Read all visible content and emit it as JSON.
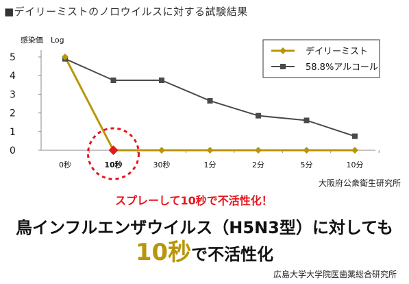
{
  "page": {
    "title": "■デイリーミストのノロウイルスに対する試験結果",
    "source_chart": "大阪府公衆衛生研究所",
    "callout": "スプレーして10秒で不活性化！",
    "headline_line1": "鳥インフルエンザウイルス（H5N3型）に対しても",
    "headline_line2_big": "10秒",
    "headline_line2_rest": "で不活性化",
    "source_bottom": "広島大学大学院医歯薬総合研究所"
  },
  "chart_data": {
    "type": "line",
    "ylabel": "感染価　Log",
    "ylim": [
      0,
      5
    ],
    "yticks": [
      "0",
      "1",
      "2",
      "3",
      "4",
      "5"
    ],
    "categories": [
      "0秒",
      "10秒",
      "30秒",
      "1分",
      "2分",
      "5分",
      "10分"
    ],
    "highlight_category": "10秒",
    "grid": false,
    "legend_position": "top-right",
    "series": [
      {
        "name": "デイリーミスト",
        "color": "#b8960b",
        "marker": "diamond",
        "values": [
          5.0,
          0.0,
          0.0,
          0.0,
          0.0,
          0.0,
          0.0
        ]
      },
      {
        "name": "58.8%アルコール",
        "color": "#4a4a4a",
        "marker": "square",
        "values": [
          4.9,
          3.75,
          3.75,
          2.65,
          1.85,
          1.6,
          0.75
        ]
      }
    ],
    "highlight_color": "#e8141b"
  }
}
